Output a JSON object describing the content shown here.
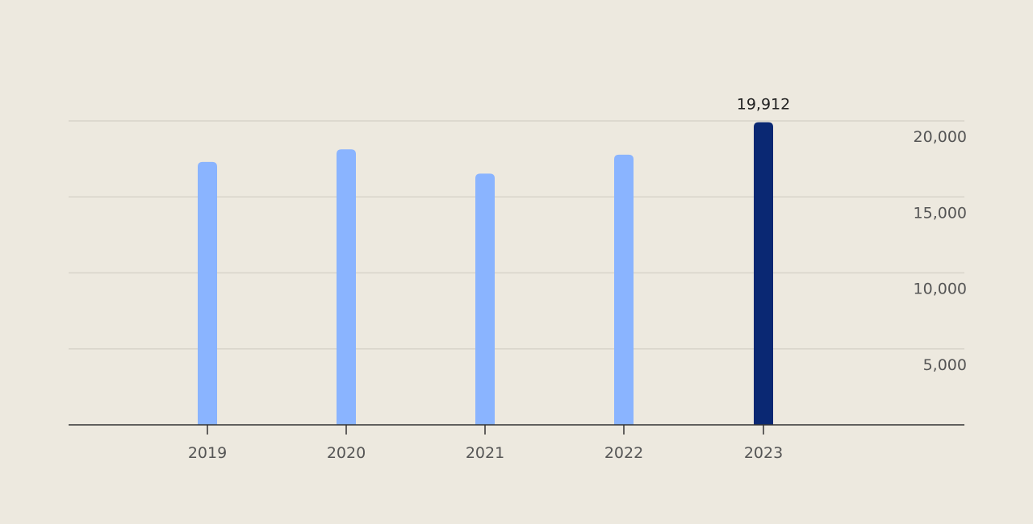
{
  "chart_data": {
    "type": "bar",
    "title": "",
    "xlabel": "",
    "ylabel": "",
    "categories": [
      "2019",
      "2020",
      "2021",
      "2022",
      "2023"
    ],
    "values": [
      17300,
      18130,
      16530,
      17780,
      19912
    ],
    "ylim": [
      0,
      20000
    ],
    "yticks": [
      5000,
      10000,
      15000,
      20000
    ],
    "ytick_labels": [
      "5,000",
      "10,000",
      "15,000",
      "20,000"
    ],
    "y_axis_position": "right",
    "grid": true,
    "data_labels": [
      {
        "category": "2023",
        "text": "19,912"
      }
    ],
    "colors": {
      "default": "#8ab4ff",
      "highlight": "#0a2873",
      "background": "#ede9df"
    },
    "highlight_category": "2023"
  }
}
